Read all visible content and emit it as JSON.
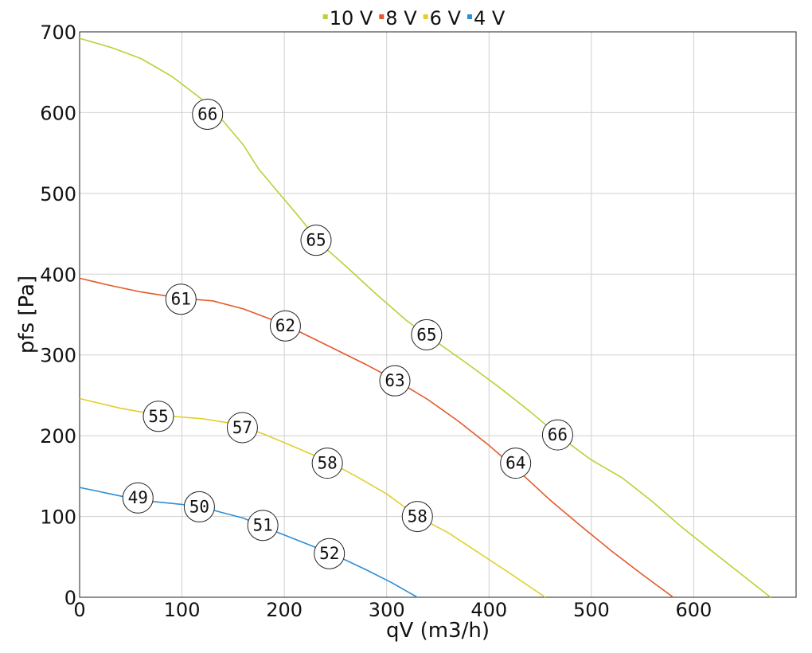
{
  "chart_data": {
    "type": "line",
    "title": "",
    "xlabel": "qV (m3/h)",
    "ylabel": "pfs [Pa]",
    "xlim": [
      0,
      700
    ],
    "ylim": [
      0,
      700
    ],
    "x_ticks": [
      0,
      100,
      200,
      300,
      400,
      500,
      600
    ],
    "y_ticks": [
      0,
      100,
      200,
      300,
      400,
      500,
      600,
      700
    ],
    "grid": true,
    "legend_position": "top-center",
    "series": [
      {
        "name": "10 V",
        "color": "#b5d334",
        "points": [
          [
            0,
            692
          ],
          [
            30,
            681
          ],
          [
            60,
            667
          ],
          [
            90,
            645
          ],
          [
            118,
            618
          ],
          [
            140,
            590
          ],
          [
            160,
            560
          ],
          [
            175,
            530
          ],
          [
            195,
            500
          ],
          [
            215,
            470
          ],
          [
            235,
            438
          ],
          [
            260,
            410
          ],
          [
            290,
            375
          ],
          [
            320,
            342
          ],
          [
            350,
            315
          ],
          [
            380,
            288
          ],
          [
            410,
            260
          ],
          [
            440,
            230
          ],
          [
            470,
            198
          ],
          [
            500,
            170
          ],
          [
            530,
            148
          ],
          [
            560,
            118
          ],
          [
            590,
            85
          ],
          [
            620,
            55
          ],
          [
            650,
            25
          ],
          [
            675,
            0
          ]
        ]
      },
      {
        "name": "8 V",
        "color": "#e2592c",
        "points": [
          [
            0,
            395
          ],
          [
            30,
            386
          ],
          [
            60,
            378
          ],
          [
            100,
            370
          ],
          [
            130,
            367
          ],
          [
            160,
            357
          ],
          [
            200,
            338
          ],
          [
            240,
            313
          ],
          [
            280,
            288
          ],
          [
            310,
            268
          ],
          [
            340,
            245
          ],
          [
            370,
            218
          ],
          [
            400,
            188
          ],
          [
            430,
            155
          ],
          [
            460,
            120
          ],
          [
            490,
            88
          ],
          [
            520,
            57
          ],
          [
            550,
            28
          ],
          [
            580,
            0
          ]
        ]
      },
      {
        "name": "6 V",
        "color": "#e2cf2c",
        "points": [
          [
            0,
            246
          ],
          [
            40,
            234
          ],
          [
            80,
            225
          ],
          [
            120,
            221
          ],
          [
            150,
            215
          ],
          [
            180,
            202
          ],
          [
            210,
            186
          ],
          [
            240,
            170
          ],
          [
            270,
            150
          ],
          [
            300,
            128
          ],
          [
            330,
            100
          ],
          [
            360,
            80
          ],
          [
            390,
            55
          ],
          [
            420,
            30
          ],
          [
            455,
            0
          ]
        ]
      },
      {
        "name": "4 V",
        "color": "#2b8fd8",
        "points": [
          [
            0,
            136
          ],
          [
            30,
            128
          ],
          [
            60,
            120
          ],
          [
            100,
            115
          ],
          [
            130,
            108
          ],
          [
            160,
            98
          ],
          [
            190,
            82
          ],
          [
            220,
            67
          ],
          [
            250,
            52
          ],
          [
            280,
            34
          ],
          [
            305,
            18
          ],
          [
            330,
            0
          ]
        ]
      }
    ],
    "annotations": [
      {
        "x": 125,
        "y": 598,
        "label": "66"
      },
      {
        "x": 231,
        "y": 442,
        "label": "65"
      },
      {
        "x": 339,
        "y": 325,
        "label": "65"
      },
      {
        "x": 467,
        "y": 201,
        "label": "66"
      },
      {
        "x": 99,
        "y": 369,
        "label": "61"
      },
      {
        "x": 201,
        "y": 336,
        "label": "62"
      },
      {
        "x": 308,
        "y": 268,
        "label": "63"
      },
      {
        "x": 426,
        "y": 166,
        "label": "64"
      },
      {
        "x": 77,
        "y": 224,
        "label": "55"
      },
      {
        "x": 159,
        "y": 210,
        "label": "57"
      },
      {
        "x": 242,
        "y": 166,
        "label": "58"
      },
      {
        "x": 330,
        "y": 100,
        "label": "58"
      },
      {
        "x": 57,
        "y": 123,
        "label": "49"
      },
      {
        "x": 117,
        "y": 112,
        "label": "50"
      },
      {
        "x": 179,
        "y": 89,
        "label": "51"
      },
      {
        "x": 244,
        "y": 54,
        "label": "52"
      }
    ]
  }
}
